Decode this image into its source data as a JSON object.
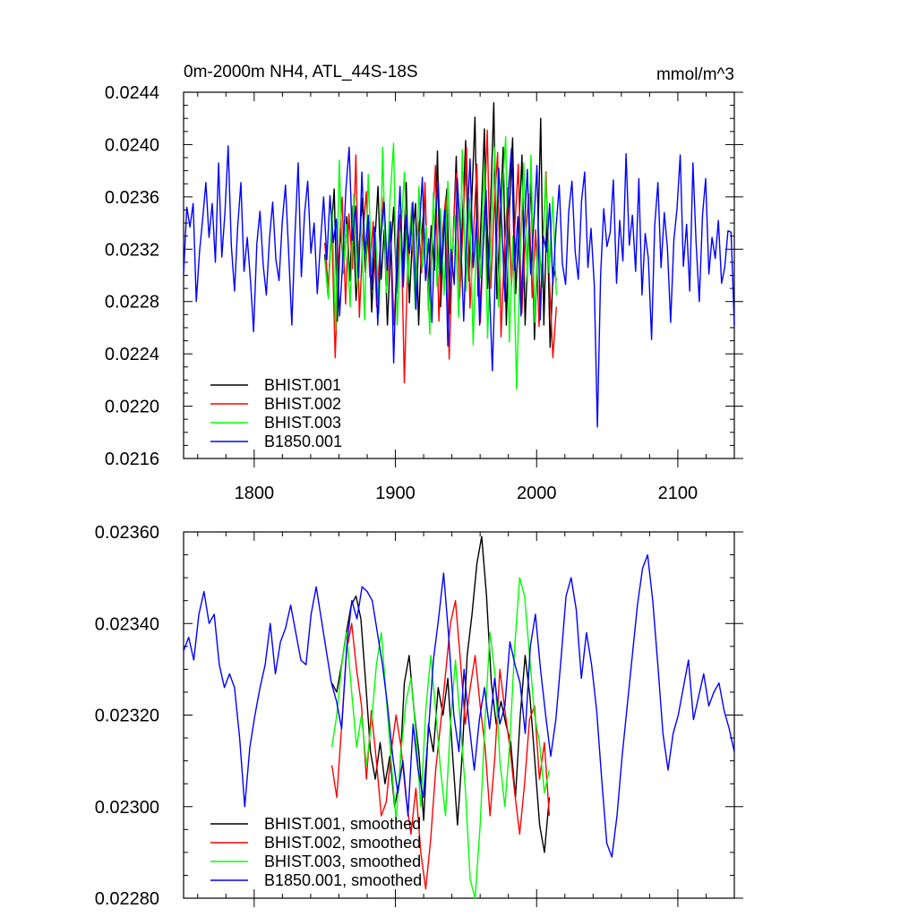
{
  "chart_data": [
    {
      "type": "line",
      "title": "0m-2000m NH4, ATL_44S-18S",
      "units": "mmol/m^3",
      "xlim": [
        1750,
        2140
      ],
      "ylim": [
        0.0216,
        0.0244
      ],
      "xticks": [
        1800,
        1900,
        2000,
        2100
      ],
      "xtick_labels": [
        "1800",
        "1900",
        "2000",
        "2100"
      ],
      "yticks": [
        0.0216,
        0.022,
        0.0224,
        0.0228,
        0.0232,
        0.0236,
        0.024,
        0.0244
      ],
      "ytick_labels": [
        "0.0216",
        "0.0220",
        "0.0224",
        "0.0228",
        "0.0232",
        "0.0236",
        "0.0240",
        "0.0244"
      ],
      "legend_position": "bottom-left",
      "series": [
        {
          "name": "BHIST.001",
          "color": "#000000",
          "x_start": 1850,
          "x_end": 2014,
          "y": [
            0.02316,
            0.02285,
            0.02332,
            0.02366,
            0.02265,
            0.02337,
            0.02302,
            0.02345,
            0.02296,
            0.02353,
            0.02281,
            0.02322,
            0.02359,
            0.02302,
            0.02341,
            0.02272,
            0.02325,
            0.02368,
            0.02297,
            0.02335,
            0.02262,
            0.02318,
            0.02352,
            0.02286,
            0.02346,
            0.02305,
            0.02371,
            0.02279,
            0.02328,
            0.02355,
            0.02262,
            0.02331,
            0.02362,
            0.02288,
            0.02338,
            0.02304,
            0.02395,
            0.02276,
            0.02333,
            0.02366,
            0.02271,
            0.02327,
            0.02391,
            0.02285,
            0.02344,
            0.02403,
            0.02296,
            0.02359,
            0.02421,
            0.02284,
            0.02347,
            0.02412,
            0.0229,
            0.02355,
            0.02432,
            0.02282,
            0.0234,
            0.02398,
            0.02262,
            0.02351,
            0.02405,
            0.02286,
            0.02337,
            0.02392,
            0.02262,
            0.02326,
            0.02371,
            0.02251,
            0.02318,
            0.0242,
            0.02262,
            0.0235,
            0.02245,
            0.02306,
            0.02296
          ]
        },
        {
          "name": "BHIST.002",
          "color": "#ff0000",
          "x_start": 1850,
          "x_end": 2014,
          "y": [
            0.02325,
            0.0229,
            0.02338,
            0.02237,
            0.02311,
            0.0236,
            0.02278,
            0.02347,
            0.02305,
            0.02392,
            0.02268,
            0.02329,
            0.02364,
            0.02299,
            0.02341,
            0.02276,
            0.02323,
            0.0236,
            0.02292,
            0.02338,
            0.02262,
            0.02316,
            0.0235,
            0.02218,
            0.02309,
            0.02348,
            0.02286,
            0.02342,
            0.02302,
            0.02371,
            0.02273,
            0.02326,
            0.02384,
            0.02265,
            0.02329,
            0.0236,
            0.02236,
            0.02322,
            0.02378,
            0.02282,
            0.02337,
            0.02398,
            0.02275,
            0.02331,
            0.02385,
            0.02264,
            0.02336,
            0.02411,
            0.0229,
            0.02351,
            0.02394,
            0.02253,
            0.02322,
            0.02367,
            0.02292,
            0.02339,
            0.02385,
            0.02271,
            0.02326,
            0.02362,
            0.02283,
            0.02335,
            0.02261,
            0.02316,
            0.02379,
            0.02295,
            0.02237,
            0.02276
          ]
        },
        {
          "name": "BHIST.003",
          "color": "#00ff00",
          "x_start": 1850,
          "x_end": 2014,
          "y": [
            0.02312,
            0.02282,
            0.0235,
            0.02259,
            0.02388,
            0.02301,
            0.02339,
            0.02276,
            0.02362,
            0.0229,
            0.02345,
            0.02266,
            0.02377,
            0.02303,
            0.02333,
            0.02271,
            0.02398,
            0.02287,
            0.02357,
            0.02401,
            0.02262,
            0.02331,
            0.02379,
            0.02294,
            0.02355,
            0.02275,
            0.02368,
            0.02306,
            0.02338,
            0.02255,
            0.02363,
            0.02292,
            0.02351,
            0.02285,
            0.02372,
            0.02311,
            0.02346,
            0.02268,
            0.02396,
            0.02288,
            0.02359,
            0.02247,
            0.02341,
            0.02298,
            0.02386,
            0.02252,
            0.02335,
            0.02398,
            0.02276,
            0.02362,
            0.02406,
            0.02249,
            0.0233,
            0.02213,
            0.02314,
            0.02386,
            0.02295,
            0.02392,
            0.02264,
            0.02339,
            0.02291,
            0.02378,
            0.02302,
            0.0236,
            0.02285
          ]
        },
        {
          "name": "B1850.001",
          "color": "#0000ff",
          "x_start": 1750,
          "x_end": 2140,
          "y": [
            0.02301,
            0.02352,
            0.02337,
            0.02355,
            0.0228,
            0.02318,
            0.02343,
            0.02371,
            0.02329,
            0.02355,
            0.0231,
            0.02386,
            0.02314,
            0.02348,
            0.02399,
            0.02323,
            0.02288,
            0.02337,
            0.02371,
            0.02303,
            0.02329,
            0.02296,
            0.02257,
            0.02324,
            0.02349,
            0.02308,
            0.02285,
            0.02329,
            0.02356,
            0.02312,
            0.02296,
            0.02341,
            0.02369,
            0.02318,
            0.02262,
            0.02331,
            0.02386,
            0.02299,
            0.02347,
            0.02372,
            0.02317,
            0.0234,
            0.02286,
            0.02325,
            0.0236,
            0.02312,
            0.02361,
            0.02325,
            0.02343,
            0.02269,
            0.02311,
            0.02366,
            0.02398,
            0.02327,
            0.02353,
            0.02298,
            0.02379,
            0.02316,
            0.02346,
            0.02289,
            0.02337,
            0.02262,
            0.02329,
            0.02356,
            0.02304,
            0.02341,
            0.02233,
            0.02318,
            0.02368,
            0.02291,
            0.02346,
            0.02317,
            0.02356,
            0.02274,
            0.02333,
            0.02375,
            0.02296,
            0.02328,
            0.02264,
            0.02337,
            0.02372,
            0.02301,
            0.0235,
            0.02246,
            0.0232,
            0.02293,
            0.02374,
            0.02331,
            0.02265,
            0.02337,
            0.02389,
            0.02306,
            0.02342,
            0.02262,
            0.02318,
            0.02365,
            0.02295,
            0.02227,
            0.02307,
            0.02382,
            0.02337,
            0.0228,
            0.02365,
            0.02397,
            0.02304,
            0.02345,
            0.02269,
            0.02336,
            0.02381,
            0.02301,
            0.02339,
            0.02384,
            0.02266,
            0.0233,
            0.02318,
            0.02355,
            0.02293,
            0.02336,
            0.02369,
            0.02309,
            0.02293,
            0.02349,
            0.02372,
            0.02318,
            0.02297,
            0.02357,
            0.02379,
            0.02306,
            0.02336,
            0.02293,
            0.02184,
            0.023,
            0.02351,
            0.02322,
            0.02333,
            0.02373,
            0.02294,
            0.02342,
            0.02311,
            0.02393,
            0.02323,
            0.02346,
            0.02303,
            0.02374,
            0.02285,
            0.02332,
            0.02313,
            0.02251,
            0.02338,
            0.02371,
            0.02306,
            0.02348,
            0.02321,
            0.02264,
            0.02327,
            0.02351,
            0.02392,
            0.02307,
            0.02339,
            0.02288,
            0.02386,
            0.02325,
            0.0228,
            0.02346,
            0.02374,
            0.02301,
            0.02329,
            0.02313,
            0.02342,
            0.02294,
            0.02306,
            0.02334,
            0.02333,
            0.02262
          ]
        }
      ]
    },
    {
      "type": "line",
      "xlim": [
        1750,
        2140
      ],
      "ylim": [
        0.0228,
        0.0236
      ],
      "xticks": [
        1800,
        1900,
        2000,
        2100
      ],
      "yticks": [
        0.0228,
        0.023,
        0.0232,
        0.0234,
        0.0236
      ],
      "ytick_labels": [
        "0.02280",
        "0.02300",
        "0.02320",
        "0.02340",
        "0.02360"
      ],
      "legend_position": "bottom-left",
      "series": [
        {
          "name": "BHIST.001, smoothed",
          "color": "#000000",
          "x_start": 1855,
          "x_end": 2009,
          "y": [
            0.02327,
            0.02325,
            0.02331,
            0.02338,
            0.02344,
            0.02346,
            0.02341,
            0.02327,
            0.02312,
            0.02306,
            0.02314,
            0.02305,
            0.02311,
            0.023,
            0.02306,
            0.02327,
            0.02333,
            0.02321,
            0.02312,
            0.02297,
            0.02318,
            0.02312,
            0.02326,
            0.0232,
            0.02328,
            0.02311,
            0.02296,
            0.02312,
            0.02333,
            0.02342,
            0.02353,
            0.02359,
            0.02346,
            0.02327,
            0.02318,
            0.02323,
            0.02318,
            0.02314,
            0.02302,
            0.0232,
            0.02333,
            0.02324,
            0.0231,
            0.02296,
            0.0229,
            0.02302
          ]
        },
        {
          "name": "BHIST.002, smoothed",
          "color": "#ff0000",
          "x_start": 1855,
          "x_end": 2009,
          "y": [
            0.02309,
            0.02302,
            0.02318,
            0.02334,
            0.0234,
            0.0233,
            0.02322,
            0.02306,
            0.02321,
            0.0231,
            0.02298,
            0.02301,
            0.02312,
            0.0232,
            0.02313,
            0.02302,
            0.02294,
            0.02304,
            0.0229,
            0.02282,
            0.02293,
            0.02308,
            0.02318,
            0.02329,
            0.0234,
            0.02345,
            0.02332,
            0.02318,
            0.02326,
            0.02333,
            0.02322,
            0.02313,
            0.02298,
            0.02311,
            0.0233,
            0.02321,
            0.02313,
            0.02303,
            0.02294,
            0.02305,
            0.02319,
            0.02322,
            0.02306,
            0.02314,
            0.02298
          ]
        },
        {
          "name": "BHIST.003, smoothed",
          "color": "#00ff00",
          "x_start": 1855,
          "x_end": 2009,
          "y": [
            0.02313,
            0.0232,
            0.02331,
            0.02338,
            0.02325,
            0.02313,
            0.0232,
            0.02309,
            0.02318,
            0.02331,
            0.02338,
            0.02324,
            0.0231,
            0.02297,
            0.02312,
            0.02323,
            0.02328,
            0.02316,
            0.023,
            0.02321,
            0.02333,
            0.02321,
            0.02308,
            0.02298,
            0.02318,
            0.02332,
            0.02318,
            0.02304,
            0.02284,
            0.0228,
            0.02296,
            0.02319,
            0.02338,
            0.02329,
            0.0231,
            0.023,
            0.02314,
            0.02335,
            0.0235,
            0.02346,
            0.02333,
            0.0232,
            0.02314,
            0.02303,
            0.02308
          ]
        },
        {
          "name": "B1850.001, smoothed",
          "color": "#0000ff",
          "x_start": 1750,
          "x_end": 2140,
          "y": [
            0.02334,
            0.02337,
            0.02332,
            0.02342,
            0.02347,
            0.0234,
            0.02342,
            0.02331,
            0.02326,
            0.02329,
            0.02326,
            0.02315,
            0.023,
            0.02313,
            0.0232,
            0.02326,
            0.02331,
            0.0234,
            0.02329,
            0.02336,
            0.02339,
            0.02344,
            0.02338,
            0.02332,
            0.02331,
            0.02342,
            0.02348,
            0.02341,
            0.02334,
            0.02327,
            0.02323,
            0.02317,
            0.02335,
            0.02345,
            0.02341,
            0.02348,
            0.02347,
            0.02345,
            0.02338,
            0.02331,
            0.02322,
            0.02311,
            0.02303,
            0.0231,
            0.02298,
            0.02318,
            0.02308,
            0.02302,
            0.02316,
            0.02332,
            0.02341,
            0.02351,
            0.02337,
            0.0232,
            0.02312,
            0.0233,
            0.02318,
            0.02308,
            0.02319,
            0.02326,
            0.02317,
            0.02328,
            0.02318,
            0.02322,
            0.02336,
            0.02331,
            0.02327,
            0.02316,
            0.02335,
            0.02342,
            0.0233,
            0.0232,
            0.02311,
            0.02319,
            0.02332,
            0.02346,
            0.0235,
            0.02343,
            0.02328,
            0.02338,
            0.02331,
            0.02321,
            0.02306,
            0.02292,
            0.02289,
            0.02298,
            0.02311,
            0.02322,
            0.02333,
            0.02344,
            0.02352,
            0.02355,
            0.02345,
            0.02331,
            0.02316,
            0.02308,
            0.02316,
            0.0232,
            0.02326,
            0.02332,
            0.02319,
            0.02324,
            0.02329,
            0.02322,
            0.02325,
            0.02327,
            0.02321,
            0.02317,
            0.02312
          ]
        }
      ]
    }
  ]
}
